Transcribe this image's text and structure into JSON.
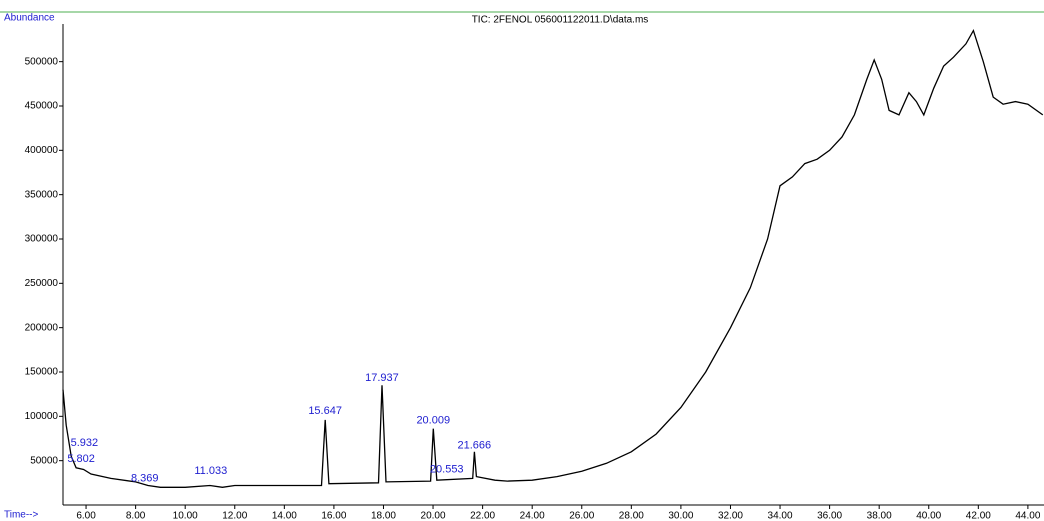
{
  "chart_data": {
    "type": "line",
    "title": "TIC: 2FENOL 056001122011.D\\data.ms",
    "ylabel": "Abundance",
    "xlabel": "Time-->",
    "xlim": [
      5.07,
      44.65
    ],
    "ylim": [
      0,
      556000
    ],
    "xticks": [
      {
        "value": 6,
        "label": "6.00"
      },
      {
        "value": 8,
        "label": "8.00"
      },
      {
        "value": 10,
        "label": "10.00"
      },
      {
        "value": 12,
        "label": "12.00"
      },
      {
        "value": 14,
        "label": "14.00"
      },
      {
        "value": 16,
        "label": "16.00"
      },
      {
        "value": 18,
        "label": "18.00"
      },
      {
        "value": 20,
        "label": "20.00"
      },
      {
        "value": 22,
        "label": "22.00"
      },
      {
        "value": 24,
        "label": "24.00"
      },
      {
        "value": 26,
        "label": "26.00"
      },
      {
        "value": 28,
        "label": "28.00"
      },
      {
        "value": 30,
        "label": "30.00"
      },
      {
        "value": 32,
        "label": "32.00"
      },
      {
        "value": 34,
        "label": "34.00"
      },
      {
        "value": 36,
        "label": "36.00"
      },
      {
        "value": 38,
        "label": "38.00"
      },
      {
        "value": 40,
        "label": "40.00"
      },
      {
        "value": 42,
        "label": "42.00"
      },
      {
        "value": 44,
        "label": "44.00"
      }
    ],
    "yticks": [
      50000,
      100000,
      150000,
      200000,
      250000,
      300000,
      350000,
      400000,
      450000,
      500000
    ],
    "series": [
      {
        "color": "#000000",
        "x": [
          5.07,
          5.2,
          5.4,
          5.6,
          5.9,
          6.2,
          7,
          8,
          8.5,
          9,
          10,
          11,
          11.5,
          12,
          13,
          14,
          15,
          15.5,
          15.65,
          15.8,
          17.8,
          17.94,
          18.1,
          19.9,
          20.01,
          20.15,
          21.6,
          21.67,
          21.75,
          22.5,
          23,
          24,
          25,
          26,
          27,
          28,
          29,
          30,
          31,
          32,
          32.8,
          33.5,
          34,
          34.5,
          35,
          35.5,
          36,
          36.5,
          37,
          37.5,
          37.8,
          38.1,
          38.4,
          38.8,
          39.2,
          39.5,
          39.8,
          40.2,
          40.6,
          41.0,
          41.5,
          41.8,
          42.2,
          42.6,
          43,
          43.5,
          44,
          44.6
        ],
        "values": [
          130000,
          90000,
          55000,
          42000,
          40000,
          35000,
          30000,
          26000,
          22000,
          20000,
          20000,
          22000,
          20000,
          22000,
          22000,
          22000,
          22000,
          22000,
          96000,
          24000,
          25000,
          135000,
          26000,
          27000,
          86000,
          28000,
          30000,
          60000,
          32000,
          28000,
          27000,
          28000,
          32000,
          38000,
          47000,
          60000,
          80000,
          110000,
          150000,
          200000,
          245000,
          300000,
          360000,
          370000,
          385000,
          390000,
          400000,
          415000,
          440000,
          480000,
          502000,
          480000,
          445000,
          440000,
          465000,
          455000,
          440000,
          470000,
          495000,
          505000,
          520000,
          535000,
          500000,
          460000,
          452000,
          455000,
          452000,
          440000
        ]
      }
    ],
    "annotations": [
      {
        "text": "5.932",
        "x": 5.932,
        "y": 70000
      },
      {
        "text": "5.802",
        "x": 5.802,
        "y": 52000
      },
      {
        "text": "8.369",
        "x": 8.369,
        "y": 30000
      },
      {
        "text": "11.033",
        "x": 11.033,
        "y": 38000
      },
      {
        "text": "15.647",
        "x": 15.647,
        "y": 106000
      },
      {
        "text": "17.937",
        "x": 17.937,
        "y": 143000
      },
      {
        "text": "20.009",
        "x": 20.009,
        "y": 95000
      },
      {
        "text": "20.553",
        "x": 20.553,
        "y": 40000
      },
      {
        "text": "21.666",
        "x": 21.666,
        "y": 67000
      }
    ]
  }
}
